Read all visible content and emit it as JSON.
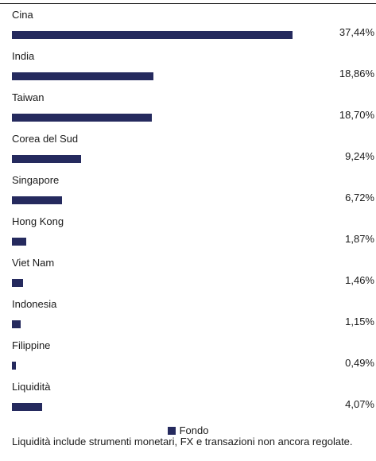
{
  "chart_data": {
    "type": "bar",
    "orientation": "horizontal",
    "categories": [
      "Cina",
      "India",
      "Taiwan",
      "Corea del Sud",
      "Singapore",
      "Hong Kong",
      "Viet Nam",
      "Indonesia",
      "Filippine",
      "Liquidità"
    ],
    "series": [
      {
        "name": "Fondo",
        "values": [
          37.44,
          18.86,
          18.7,
          9.24,
          6.72,
          1.87,
          1.46,
          1.15,
          0.49,
          4.07
        ],
        "value_labels": [
          "37,44%",
          "18,86%",
          "18,70%",
          "9,24%",
          "6,72%",
          "1,87%",
          "1,46%",
          "1,15%",
          "0,49%",
          "4,07%"
        ]
      }
    ],
    "xlim": [
      0,
      37.44
    ],
    "grid": false,
    "legend_position": "bottom-center"
  },
  "colors": {
    "bar": "#252a5e",
    "rule": "#222222"
  },
  "legend": {
    "label": "Fondo"
  },
  "footnote": "Liquidità include strumenti monetari, FX e transazioni non ancora regolate."
}
